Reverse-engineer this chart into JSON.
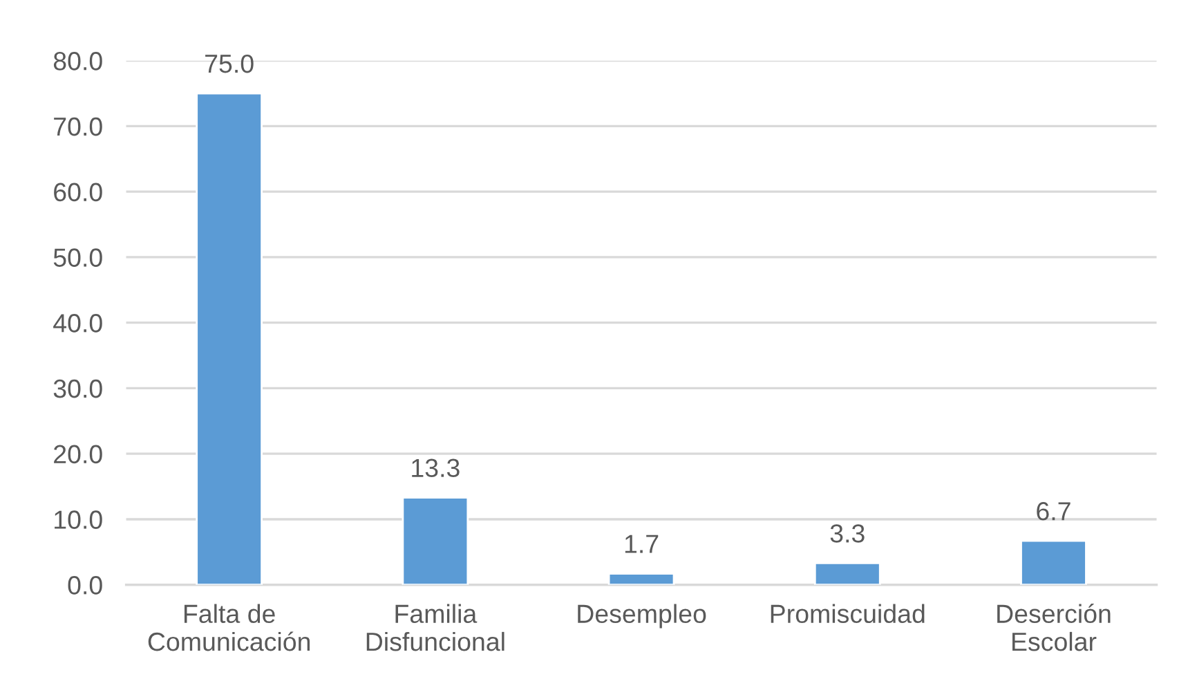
{
  "chart_data": {
    "type": "bar",
    "categories": [
      "Falta de\nComunicación",
      "Familia\nDisfuncional",
      "Desempleo",
      "Promiscuidad",
      "Deserción\nEscolar"
    ],
    "values": [
      75.0,
      13.3,
      1.7,
      3.3,
      6.7
    ],
    "value_labels": [
      "75.0",
      "13.3",
      "1.7",
      "3.3",
      "6.7"
    ],
    "color": "#5b9bd5",
    "ylim": [
      0,
      80
    ],
    "yticks": [
      {
        "value": 0,
        "label": "0.0"
      },
      {
        "value": 10,
        "label": "10.0"
      },
      {
        "value": 20,
        "label": "20.0"
      },
      {
        "value": 30,
        "label": "30.0"
      },
      {
        "value": 40,
        "label": "40.0"
      },
      {
        "value": 50,
        "label": "50.0"
      },
      {
        "value": 60,
        "label": "60.0"
      },
      {
        "value": 70,
        "label": "70.0"
      },
      {
        "value": 80,
        "label": "80.0"
      }
    ],
    "grid": "y",
    "legend": false
  }
}
